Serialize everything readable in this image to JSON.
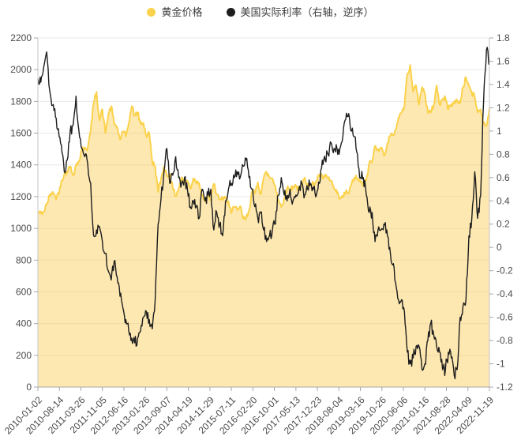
{
  "legend": {
    "items": [
      {
        "label": "黄金价格",
        "color": "#fbd24b"
      },
      {
        "label": "美国实际利率（右轴，逆序）",
        "color": "#1d1d1d"
      }
    ]
  },
  "chart_data": {
    "type": "line",
    "title": "",
    "grid": true,
    "legend_position": "top-center",
    "x_unit": "month",
    "x_monthly_from": "2010-01",
    "x_monthly_to": "2022-11",
    "x_tick_labels": [
      "2010-01-02",
      "2010-08-14",
      "2011-03-26",
      "2011-11-05",
      "2012-06-16",
      "2013-01-26",
      "2013-09-07",
      "2014-04-19",
      "2014-11-29",
      "2015-07-11",
      "2016-02-20",
      "2016-10-01",
      "2017-05-13",
      "2017-12-23",
      "2018-08-04",
      "2019-03-16",
      "2019-10-26",
      "2020-06-06",
      "2021-01-16",
      "2021-08-28",
      "2022-04-09",
      "2022-11-19"
    ],
    "left_axis": {
      "series": "黄金价格",
      "min": 0,
      "max": 2200,
      "step": 200,
      "ticks": [
        "0",
        "200",
        "400",
        "600",
        "800",
        "1000",
        "1200",
        "1400",
        "1600",
        "1800",
        "2000",
        "2200"
      ]
    },
    "right_axis": {
      "series": "美国实际利率",
      "min": -1.2,
      "max": 1.8,
      "step": 0.2,
      "ticks": [
        "-1.2",
        "-1",
        "-0.8",
        "-0.6",
        "-0.4",
        "-0.2",
        "0",
        "0.2",
        "0.4",
        "0.6",
        "0.8",
        "1",
        "1.2",
        "1.4",
        "1.6",
        "1.8"
      ]
    },
    "series": [
      {
        "name": "黄金价格",
        "axis": "left",
        "style": "area",
        "color": "#fbd24b",
        "area_color": "rgba(250,205,85,0.45)",
        "values": [
          1100,
          1095,
          1105,
          1150,
          1205,
          1230,
          1195,
          1215,
          1300,
          1340,
          1360,
          1390,
          1335,
          1400,
          1420,
          1495,
          1510,
          1505,
          1615,
          1790,
          1860,
          1680,
          1750,
          1600,
          1715,
          1770,
          1660,
          1640,
          1560,
          1610,
          1580,
          1665,
          1770,
          1710,
          1730,
          1660,
          1665,
          1580,
          1600,
          1420,
          1390,
          1230,
          1310,
          1390,
          1330,
          1345,
          1250,
          1205,
          1250,
          1320,
          1295,
          1300,
          1250,
          1315,
          1295,
          1285,
          1215,
          1170,
          1200,
          1185,
          1280,
          1215,
          1185,
          1180,
          1190,
          1170,
          1095,
          1135,
          1115,
          1140,
          1060,
          1062,
          1115,
          1230,
          1220,
          1290,
          1215,
          1320,
          1355,
          1320,
          1315,
          1265,
          1180,
          1135,
          1190,
          1255,
          1245,
          1265,
          1270,
          1240,
          1270,
          1320,
          1280,
          1270,
          1280,
          1300,
          1340,
          1320,
          1325,
          1315,
          1300,
          1250,
          1220,
          1185,
          1195,
          1230,
          1220,
          1280,
          1320,
          1315,
          1290,
          1280,
          1305,
          1410,
          1420,
          1520,
          1500,
          1510,
          1460,
          1515,
          1580,
          1585,
          1620,
          1700,
          1730,
          1770,
          1975,
          2030,
          1860,
          1900,
          1780,
          1890,
          1850,
          1730,
          1730,
          1775,
          1900,
          1780,
          1815,
          1820,
          1750,
          1785,
          1790,
          1805,
          1790,
          1890,
          1950,
          1900,
          1850,
          1830,
          1730,
          1750,
          1660,
          1645,
          1755
        ]
      },
      {
        "name": "美国实际利率（右轴，逆序）",
        "axis": "right",
        "style": "line",
        "color": "#1d1d1d",
        "values": [
          1.45,
          1.42,
          1.55,
          1.68,
          1.35,
          1.22,
          1.12,
          1.02,
          0.88,
          0.65,
          0.75,
          1.0,
          1.05,
          1.3,
          1.0,
          0.85,
          0.78,
          0.72,
          0.55,
          0.1,
          0.15,
          0.18,
          0.05,
          -0.05,
          -0.2,
          -0.28,
          -0.12,
          -0.25,
          -0.42,
          -0.52,
          -0.62,
          -0.72,
          -0.78,
          -0.82,
          -0.78,
          -0.72,
          -0.6,
          -0.55,
          -0.62,
          -0.7,
          -0.45,
          0.2,
          0.42,
          0.65,
          0.85,
          0.55,
          0.62,
          0.78,
          0.6,
          0.55,
          0.6,
          0.5,
          0.35,
          0.4,
          0.35,
          0.25,
          0.5,
          0.4,
          0.45,
          0.5,
          0.15,
          0.3,
          0.2,
          0.1,
          0.4,
          0.5,
          0.55,
          0.6,
          0.65,
          0.6,
          0.7,
          0.75,
          0.6,
          0.5,
          0.35,
          0.25,
          0.3,
          0.15,
          0.05,
          0.1,
          0.15,
          0.2,
          0.45,
          0.6,
          0.45,
          0.4,
          0.5,
          0.4,
          0.45,
          0.5,
          0.55,
          0.45,
          0.5,
          0.55,
          0.5,
          0.45,
          0.55,
          0.75,
          0.75,
          0.8,
          0.9,
          0.85,
          0.85,
          0.85,
          0.95,
          1.1,
          1.15,
          1.0,
          0.95,
          0.8,
          0.6,
          0.6,
          0.45,
          0.3,
          0.3,
          0.05,
          0.15,
          0.15,
          0.2,
          0.15,
          0.0,
          -0.15,
          -0.3,
          -0.45,
          -0.45,
          -0.55,
          -0.9,
          -1.0,
          -0.95,
          -0.85,
          -0.85,
          -1.05,
          -1.0,
          -0.8,
          -0.65,
          -0.75,
          -0.85,
          -0.9,
          -1.05,
          -1.05,
          -0.9,
          -0.95,
          -1.1,
          -1.05,
          -0.6,
          -0.5,
          -0.45,
          0.1,
          0.25,
          0.65,
          0.25,
          0.45,
          1.25,
          1.7,
          1.58
        ]
      }
    ]
  }
}
